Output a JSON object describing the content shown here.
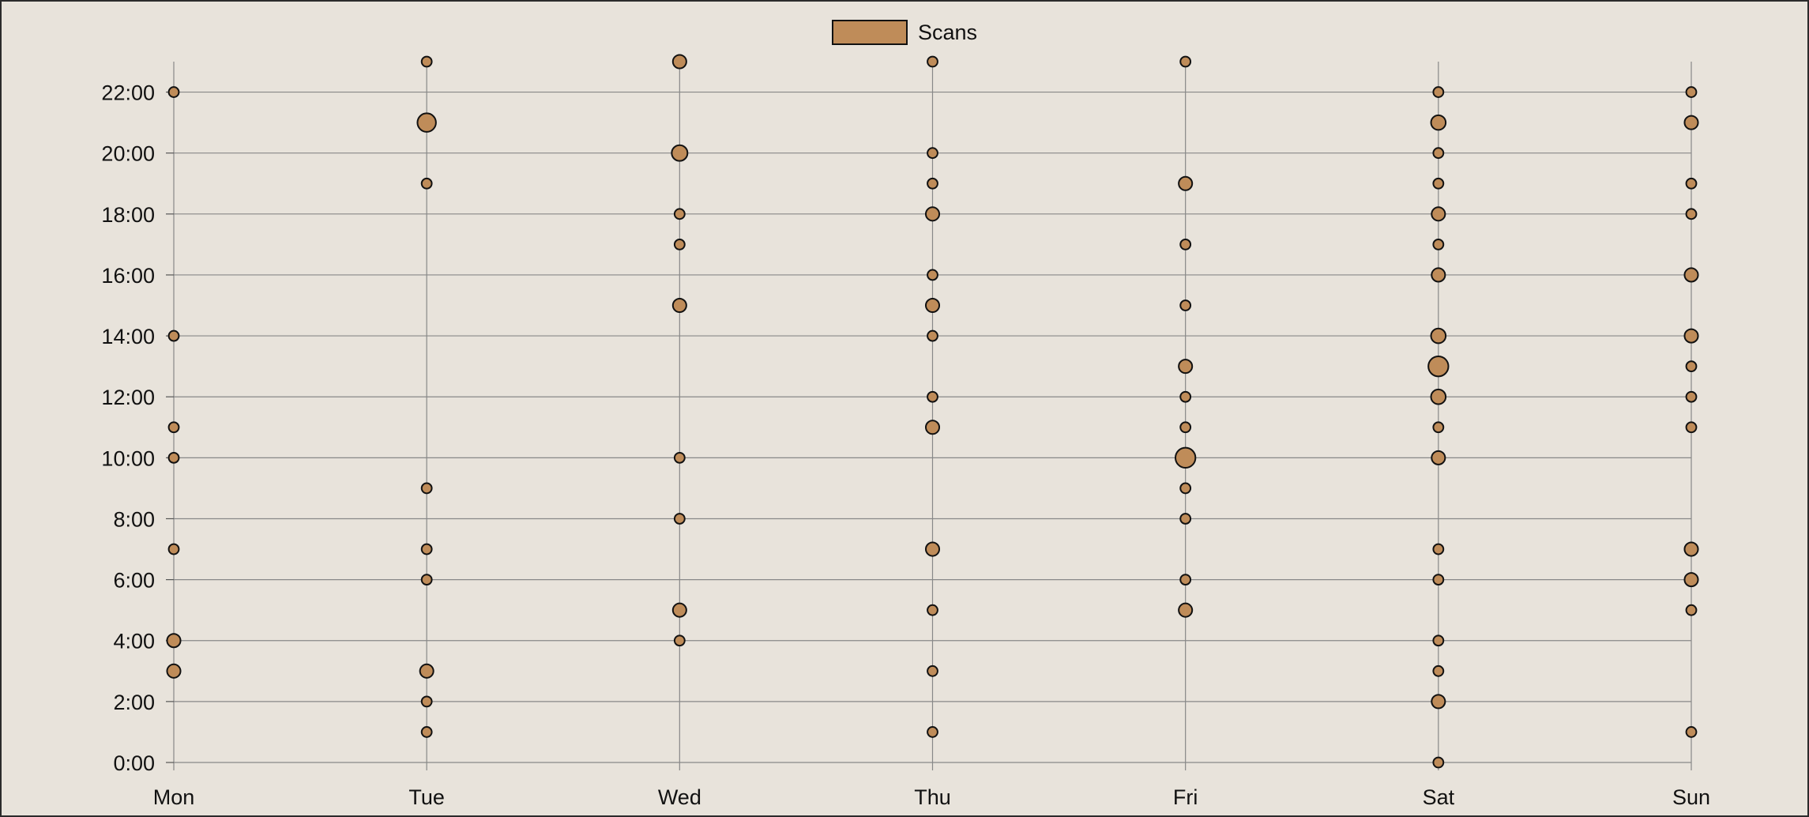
{
  "chart_data": {
    "type": "scatter",
    "legend": {
      "label": "Scans",
      "placement": "top-center"
    },
    "x_categories": [
      "Mon",
      "Tue",
      "Wed",
      "Thu",
      "Fri",
      "Sat",
      "Sun"
    ],
    "y_ticks": [
      "0:00",
      "2:00",
      "4:00",
      "6:00",
      "8:00",
      "10:00",
      "12:00",
      "14:00",
      "16:00",
      "18:00",
      "20:00",
      "22:00"
    ],
    "ylim": [
      0,
      23
    ],
    "grid": "horizontal and vertical",
    "colors": {
      "marker_fill": "#bf8c59",
      "marker_stroke": "#111111",
      "grid": "#888888",
      "background": "#e8e3db"
    },
    "series": [
      {
        "name": "Scans",
        "points": [
          {
            "day": "Mon",
            "hour": 22,
            "scans": 1
          },
          {
            "day": "Mon",
            "hour": 14,
            "scans": 1
          },
          {
            "day": "Mon",
            "hour": 11,
            "scans": 1
          },
          {
            "day": "Mon",
            "hour": 10,
            "scans": 1
          },
          {
            "day": "Mon",
            "hour": 7,
            "scans": 1
          },
          {
            "day": "Mon",
            "hour": 4,
            "scans": 3
          },
          {
            "day": "Mon",
            "hour": 3,
            "scans": 3
          },
          {
            "day": "Tue",
            "hour": 23,
            "scans": 1
          },
          {
            "day": "Tue",
            "hour": 21,
            "scans": 8
          },
          {
            "day": "Tue",
            "hour": 19,
            "scans": 1
          },
          {
            "day": "Tue",
            "hour": 9,
            "scans": 1
          },
          {
            "day": "Tue",
            "hour": 7,
            "scans": 1
          },
          {
            "day": "Tue",
            "hour": 6,
            "scans": 1
          },
          {
            "day": "Tue",
            "hour": 3,
            "scans": 3
          },
          {
            "day": "Tue",
            "hour": 2,
            "scans": 1
          },
          {
            "day": "Tue",
            "hour": 1,
            "scans": 1
          },
          {
            "day": "Wed",
            "hour": 23,
            "scans": 3
          },
          {
            "day": "Wed",
            "hour": 20,
            "scans": 5
          },
          {
            "day": "Wed",
            "hour": 18,
            "scans": 1
          },
          {
            "day": "Wed",
            "hour": 17,
            "scans": 1
          },
          {
            "day": "Wed",
            "hour": 15,
            "scans": 3
          },
          {
            "day": "Wed",
            "hour": 10,
            "scans": 1
          },
          {
            "day": "Wed",
            "hour": 8,
            "scans": 1
          },
          {
            "day": "Wed",
            "hour": 5,
            "scans": 3
          },
          {
            "day": "Wed",
            "hour": 4,
            "scans": 1
          },
          {
            "day": "Thu",
            "hour": 23,
            "scans": 1
          },
          {
            "day": "Thu",
            "hour": 20,
            "scans": 1
          },
          {
            "day": "Thu",
            "hour": 19,
            "scans": 1
          },
          {
            "day": "Thu",
            "hour": 18,
            "scans": 3
          },
          {
            "day": "Thu",
            "hour": 16,
            "scans": 1
          },
          {
            "day": "Thu",
            "hour": 15,
            "scans": 3
          },
          {
            "day": "Thu",
            "hour": 14,
            "scans": 1
          },
          {
            "day": "Thu",
            "hour": 12,
            "scans": 1
          },
          {
            "day": "Thu",
            "hour": 11,
            "scans": 3
          },
          {
            "day": "Thu",
            "hour": 7,
            "scans": 3
          },
          {
            "day": "Thu",
            "hour": 5,
            "scans": 1
          },
          {
            "day": "Thu",
            "hour": 3,
            "scans": 1
          },
          {
            "day": "Thu",
            "hour": 1,
            "scans": 1
          },
          {
            "day": "Fri",
            "hour": 23,
            "scans": 1
          },
          {
            "day": "Fri",
            "hour": 19,
            "scans": 3
          },
          {
            "day": "Fri",
            "hour": 17,
            "scans": 1
          },
          {
            "day": "Fri",
            "hour": 15,
            "scans": 1
          },
          {
            "day": "Fri",
            "hour": 13,
            "scans": 3
          },
          {
            "day": "Fri",
            "hour": 12,
            "scans": 1
          },
          {
            "day": "Fri",
            "hour": 11,
            "scans": 1
          },
          {
            "day": "Fri",
            "hour": 10,
            "scans": 10
          },
          {
            "day": "Fri",
            "hour": 9,
            "scans": 1
          },
          {
            "day": "Fri",
            "hour": 8,
            "scans": 1
          },
          {
            "day": "Fri",
            "hour": 6,
            "scans": 1
          },
          {
            "day": "Fri",
            "hour": 5,
            "scans": 3
          },
          {
            "day": "Sat",
            "hour": 22,
            "scans": 1
          },
          {
            "day": "Sat",
            "hour": 21,
            "scans": 4
          },
          {
            "day": "Sat",
            "hour": 20,
            "scans": 1
          },
          {
            "day": "Sat",
            "hour": 19,
            "scans": 1
          },
          {
            "day": "Sat",
            "hour": 18,
            "scans": 3
          },
          {
            "day": "Sat",
            "hour": 17,
            "scans": 1
          },
          {
            "day": "Sat",
            "hour": 16,
            "scans": 3
          },
          {
            "day": "Sat",
            "hour": 14,
            "scans": 4
          },
          {
            "day": "Sat",
            "hour": 13,
            "scans": 10
          },
          {
            "day": "Sat",
            "hour": 12,
            "scans": 4
          },
          {
            "day": "Sat",
            "hour": 11,
            "scans": 1
          },
          {
            "day": "Sat",
            "hour": 10,
            "scans": 3
          },
          {
            "day": "Sat",
            "hour": 7,
            "scans": 1
          },
          {
            "day": "Sat",
            "hour": 6,
            "scans": 1
          },
          {
            "day": "Sat",
            "hour": 4,
            "scans": 1
          },
          {
            "day": "Sat",
            "hour": 3,
            "scans": 1
          },
          {
            "day": "Sat",
            "hour": 2,
            "scans": 3
          },
          {
            "day": "Sat",
            "hour": 0,
            "scans": 1
          },
          {
            "day": "Sun",
            "hour": 22,
            "scans": 1
          },
          {
            "day": "Sun",
            "hour": 21,
            "scans": 3
          },
          {
            "day": "Sun",
            "hour": 19,
            "scans": 1
          },
          {
            "day": "Sun",
            "hour": 18,
            "scans": 1
          },
          {
            "day": "Sun",
            "hour": 16,
            "scans": 3
          },
          {
            "day": "Sun",
            "hour": 14,
            "scans": 3
          },
          {
            "day": "Sun",
            "hour": 13,
            "scans": 1
          },
          {
            "day": "Sun",
            "hour": 12,
            "scans": 1
          },
          {
            "day": "Sun",
            "hour": 11,
            "scans": 1
          },
          {
            "day": "Sun",
            "hour": 7,
            "scans": 3
          },
          {
            "day": "Sun",
            "hour": 6,
            "scans": 3
          },
          {
            "day": "Sun",
            "hour": 5,
            "scans": 1
          },
          {
            "day": "Sun",
            "hour": 1,
            "scans": 1
          }
        ]
      }
    ]
  }
}
